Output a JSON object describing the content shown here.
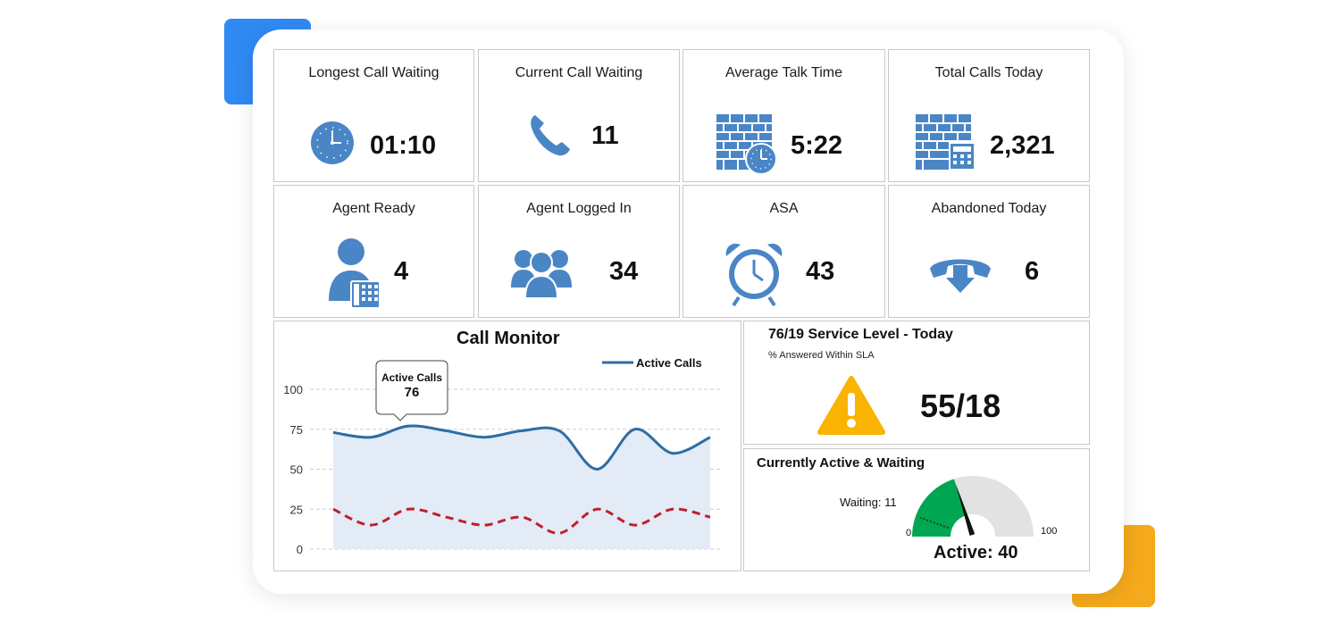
{
  "tiles": [
    {
      "title": "Longest Call Waiting",
      "value": "01:10",
      "icon": "clock-icon"
    },
    {
      "title": "Current Call Waiting",
      "value": "11",
      "icon": "phone-icon"
    },
    {
      "title": "Average Talk Time",
      "value": "5:22",
      "icon": "brick-wall-clock-icon"
    },
    {
      "title": "Total Calls Today",
      "value": "2,321",
      "icon": "brick-wall-calculator-icon"
    },
    {
      "title": "Agent Ready",
      "value": "4",
      "icon": "agent-phone-icon"
    },
    {
      "title": "Agent Logged In",
      "value": "34",
      "icon": "user-group-icon"
    },
    {
      "title": "ASA",
      "value": "43",
      "icon": "alarm-clock-icon"
    },
    {
      "title": "Abandoned Today",
      "value": "6",
      "icon": "hang-up-phone-icon"
    }
  ],
  "chart_data": {
    "type": "line",
    "title": "Call Monitor",
    "x": [
      0,
      1,
      2,
      3,
      4,
      5,
      6,
      7,
      8,
      9,
      10
    ],
    "series": [
      {
        "name": "Active Calls",
        "values": [
          73,
          70,
          77,
          74,
          70,
          74,
          74,
          50,
          75,
          60,
          70
        ],
        "style": "solid",
        "fill": true
      },
      {
        "values": [
          25,
          15,
          25,
          20,
          15,
          20,
          10,
          25,
          15,
          25,
          20
        ],
        "style": "dashed"
      }
    ],
    "yticks": [
      "100",
      "75",
      "50",
      "25",
      "0"
    ],
    "ylim": [
      0,
      100
    ],
    "legend": "top-right",
    "grid": true,
    "tooltip": {
      "label": "Active Calls",
      "value": "76"
    },
    "colors": {
      "active": "#2e6da4",
      "fill": "#e3ebf6",
      "dashed": "#c0202a"
    }
  },
  "service_level": {
    "title": "76/19 Service Level - Today",
    "subtitle": "% Answered Within SLA",
    "value": "55/18",
    "icon": "warning-icon",
    "warning_color": "#f9b300"
  },
  "gauge": {
    "title": "Currently Active & Waiting",
    "waiting_label": "Waiting: 11",
    "active_label": "Active: 40",
    "min_label": "0",
    "max_label": "100",
    "active": 40,
    "waiting": 11,
    "max": 100,
    "colors": {
      "active": "#00a651",
      "rest": "#e2e2e2"
    }
  },
  "colors": {
    "icon": "#4a86c5",
    "accent_blue": "#2f8af3",
    "accent_orange": "#f5a91c"
  }
}
